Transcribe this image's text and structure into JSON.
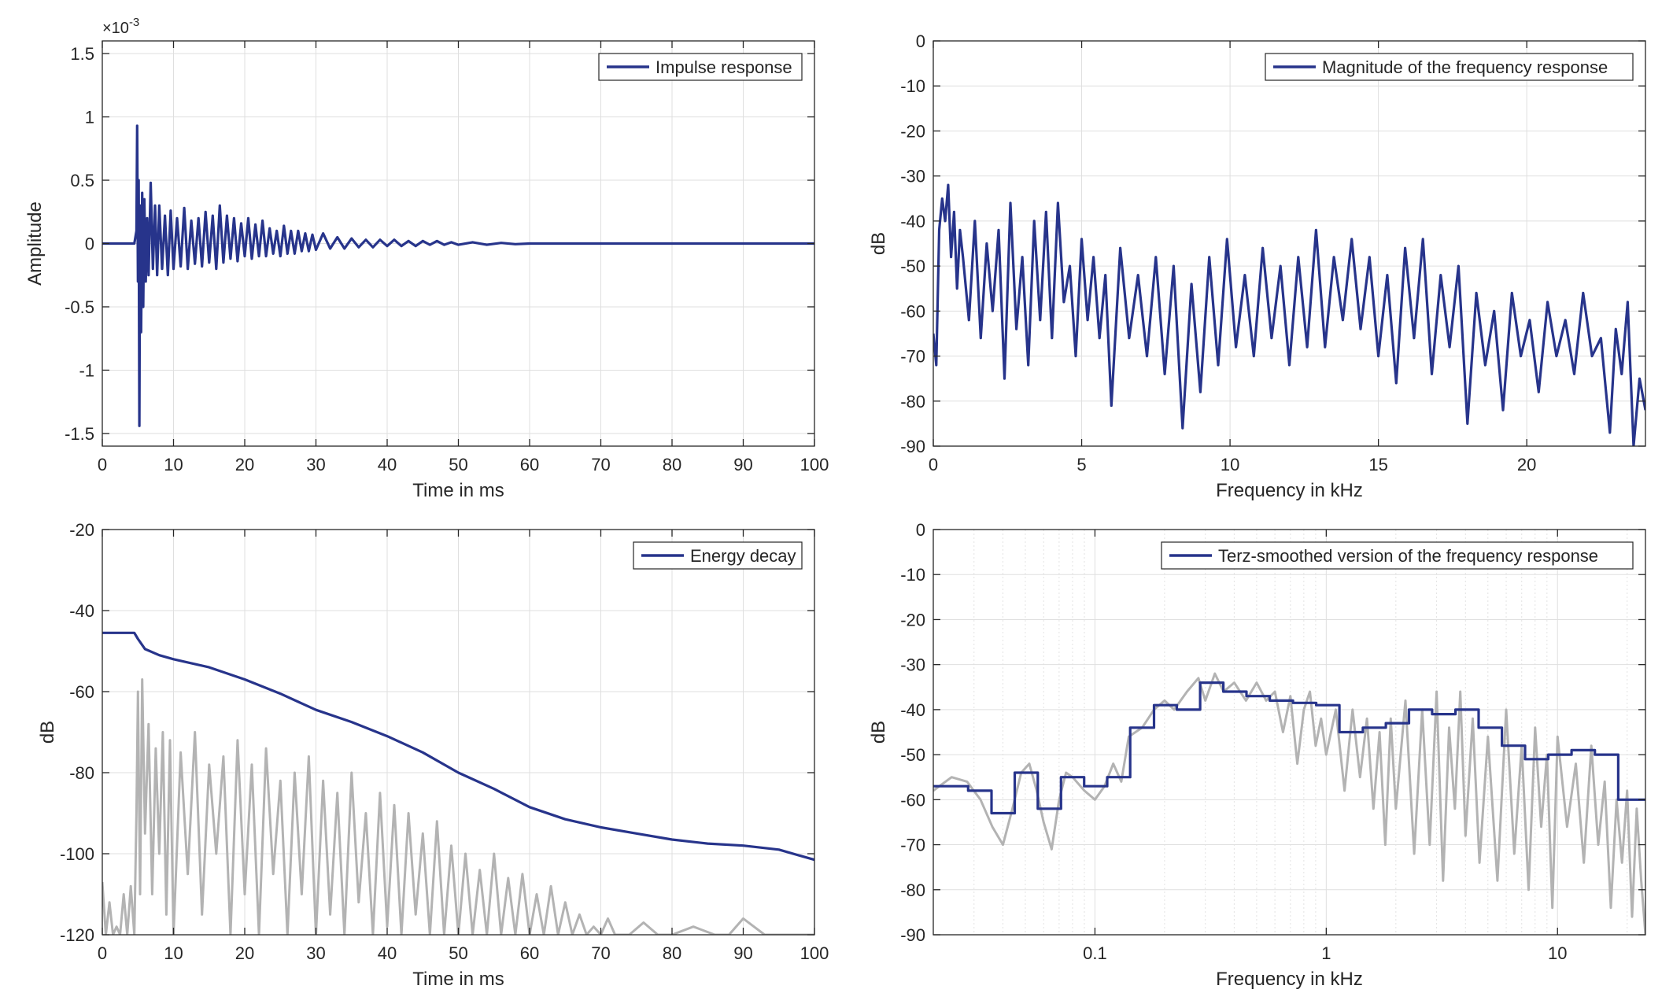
{
  "colors": {
    "series": "#27348b",
    "raw": "#b3b3b3",
    "axis": "#262626",
    "grid": "#dfdfdf",
    "minor_grid": "#e3e3e3"
  },
  "chart_data": [
    {
      "id": "impulse",
      "type": "line",
      "title": "",
      "xlabel": "Time in ms",
      "ylabel": "Amplitude",
      "xlim": [
        0,
        100
      ],
      "ylim": [
        -1.6,
        1.6
      ],
      "x_scale": "linear",
      "exponent_label": "×10",
      "exponent_value": "-3",
      "grid": true,
      "legend_position": "top-right",
      "x_ticks": [
        0,
        10,
        20,
        30,
        40,
        50,
        60,
        70,
        80,
        90,
        100
      ],
      "x_tick_labels": [
        "0",
        "10",
        "20",
        "30",
        "40",
        "50",
        "60",
        "70",
        "80",
        "90",
        "100"
      ],
      "y_ticks": [
        -1.5,
        -1,
        -0.5,
        0,
        0.5,
        1,
        1.5
      ],
      "y_tick_labels": [
        "-1.5",
        "-1",
        "-0.5",
        "0",
        "0.5",
        "1",
        "1.5"
      ],
      "series": [
        {
          "name": "Impulse response",
          "role": "main",
          "x": [
            0,
            4.5,
            4.8,
            4.9,
            5.0,
            5.1,
            5.2,
            5.3,
            5.45,
            5.6,
            5.75,
            5.9,
            6.1,
            6.3,
            6.5,
            6.8,
            7.1,
            7.4,
            7.7,
            8.0,
            8.4,
            8.8,
            9.2,
            9.6,
            10.0,
            10.5,
            11.0,
            11.5,
            12.0,
            12.5,
            13.0,
            13.5,
            14.0,
            14.5,
            15.0,
            15.5,
            16.0,
            16.5,
            17.0,
            17.5,
            18.0,
            18.5,
            19.0,
            19.5,
            20.0,
            20.5,
            21.0,
            21.5,
            22.0,
            22.5,
            23.0,
            23.5,
            24.0,
            24.5,
            25.0,
            25.5,
            26.0,
            26.5,
            27.0,
            27.5,
            28.0,
            28.5,
            29.0,
            29.5,
            30.0,
            31.0,
            32.0,
            33.0,
            34.0,
            35.0,
            36.0,
            37.0,
            38.0,
            39.0,
            40.0,
            41.0,
            42.0,
            43.0,
            44.0,
            45.0,
            46.0,
            47.0,
            48.0,
            49.0,
            50.0,
            52.0,
            54.0,
            56.0,
            58.0,
            60.0,
            65.0,
            70.0,
            80.0,
            90.0,
            100.0
          ],
          "y": [
            0,
            0,
            0.1,
            0.93,
            -0.3,
            0.5,
            -1.44,
            0.3,
            -0.7,
            0.4,
            -0.5,
            0.35,
            -0.3,
            0.2,
            -0.25,
            0.48,
            -0.2,
            0.3,
            -0.25,
            0.3,
            -0.2,
            0.22,
            -0.25,
            0.26,
            -0.2,
            0.2,
            -0.18,
            0.28,
            -0.2,
            0.18,
            -0.16,
            0.2,
            -0.18,
            0.25,
            -0.15,
            0.22,
            -0.2,
            0.3,
            -0.15,
            0.22,
            -0.12,
            0.2,
            -0.14,
            0.16,
            -0.1,
            0.2,
            -0.12,
            0.15,
            -0.1,
            0.18,
            -0.1,
            0.12,
            -0.08,
            0.1,
            -0.1,
            0.14,
            -0.08,
            0.1,
            -0.08,
            0.1,
            -0.06,
            0.08,
            -0.06,
            0.07,
            -0.05,
            0.08,
            -0.04,
            0.05,
            -0.04,
            0.04,
            -0.03,
            0.03,
            -0.03,
            0.03,
            -0.02,
            0.03,
            -0.02,
            0.02,
            -0.02,
            0.02,
            -0.01,
            0.02,
            -0.01,
            0.01,
            -0.01,
            0.01,
            -0.01,
            0.005,
            -0.005,
            0,
            0,
            0,
            0,
            0,
            0
          ]
        }
      ]
    },
    {
      "id": "magnitude",
      "type": "line",
      "title": "",
      "xlabel": "Frequency in kHz",
      "ylabel": "dB",
      "xlim": [
        0,
        24
      ],
      "ylim": [
        -90,
        0
      ],
      "x_scale": "linear",
      "grid": true,
      "legend_position": "top-right",
      "x_ticks": [
        0,
        5,
        10,
        15,
        20
      ],
      "x_tick_labels": [
        "0",
        "5",
        "10",
        "15",
        "20"
      ],
      "y_ticks": [
        -90,
        -80,
        -70,
        -60,
        -50,
        -40,
        -30,
        -20,
        -10,
        0
      ],
      "y_tick_labels": [
        "-90",
        "-80",
        "-70",
        "-60",
        "-50",
        "-40",
        "-30",
        "-20",
        "-10",
        "0"
      ],
      "series": [
        {
          "name": "Magnitude of the frequency response",
          "role": "main",
          "x": [
            0.0,
            0.1,
            0.2,
            0.3,
            0.4,
            0.5,
            0.6,
            0.7,
            0.8,
            0.9,
            1.0,
            1.2,
            1.4,
            1.6,
            1.8,
            2.0,
            2.2,
            2.4,
            2.6,
            2.8,
            3.0,
            3.2,
            3.4,
            3.6,
            3.8,
            4.0,
            4.2,
            4.4,
            4.6,
            4.8,
            5.0,
            5.2,
            5.4,
            5.6,
            5.8,
            6.0,
            6.3,
            6.6,
            6.9,
            7.2,
            7.5,
            7.8,
            8.1,
            8.4,
            8.7,
            9.0,
            9.3,
            9.6,
            9.9,
            10.2,
            10.5,
            10.8,
            11.1,
            11.4,
            11.7,
            12.0,
            12.3,
            12.6,
            12.9,
            13.2,
            13.5,
            13.8,
            14.1,
            14.4,
            14.7,
            15.0,
            15.3,
            15.6,
            15.9,
            16.2,
            16.5,
            16.8,
            17.1,
            17.4,
            17.7,
            18.0,
            18.3,
            18.6,
            18.9,
            19.2,
            19.5,
            19.8,
            20.1,
            20.4,
            20.7,
            21.0,
            21.3,
            21.6,
            21.9,
            22.2,
            22.5,
            22.8,
            23.0,
            23.2,
            23.4,
            23.6,
            23.8,
            24.0
          ],
          "y": [
            -65,
            -72,
            -42,
            -35,
            -40,
            -32,
            -48,
            -38,
            -55,
            -42,
            -48,
            -62,
            -40,
            -66,
            -45,
            -60,
            -42,
            -75,
            -36,
            -64,
            -48,
            -72,
            -40,
            -62,
            -38,
            -66,
            -36,
            -58,
            -50,
            -70,
            -44,
            -62,
            -48,
            -66,
            -52,
            -81,
            -46,
            -66,
            -52,
            -70,
            -48,
            -74,
            -50,
            -86,
            -54,
            -78,
            -48,
            -72,
            -44,
            -68,
            -52,
            -70,
            -46,
            -66,
            -50,
            -72,
            -48,
            -68,
            -42,
            -68,
            -48,
            -62,
            -44,
            -64,
            -48,
            -70,
            -52,
            -76,
            -46,
            -66,
            -44,
            -74,
            -52,
            -68,
            -50,
            -85,
            -56,
            -72,
            -60,
            -82,
            -56,
            -70,
            -62,
            -78,
            -58,
            -70,
            -62,
            -74,
            -56,
            -70,
            -66,
            -87,
            -64,
            -74,
            -58,
            -90,
            -75,
            -82
          ]
        }
      ]
    },
    {
      "id": "energy",
      "type": "line",
      "title": "",
      "xlabel": "Time in ms",
      "ylabel": "dB",
      "xlim": [
        0,
        100
      ],
      "ylim": [
        -120,
        -20
      ],
      "x_scale": "linear",
      "grid": true,
      "legend_position": "top-right",
      "x_ticks": [
        0,
        10,
        20,
        30,
        40,
        50,
        60,
        70,
        80,
        90,
        100
      ],
      "x_tick_labels": [
        "0",
        "10",
        "20",
        "30",
        "40",
        "50",
        "60",
        "70",
        "80",
        "90",
        "100"
      ],
      "y_ticks": [
        -120,
        -100,
        -80,
        -60,
        -40,
        -20
      ],
      "y_tick_labels": [
        "-120",
        "-100",
        "-80",
        "-60",
        "-40",
        "-20"
      ],
      "series": [
        {
          "name": "",
          "role": "raw",
          "x": [
            0,
            0.5,
            1,
            1.5,
            2,
            2.5,
            3,
            3.5,
            4,
            4.5,
            4.8,
            5.0,
            5.3,
            5.6,
            6.0,
            6.5,
            7.0,
            7.5,
            8.0,
            8.5,
            9.0,
            9.5,
            10.0,
            11,
            12,
            13,
            14,
            15,
            16,
            17,
            18,
            19,
            20,
            21,
            22,
            23,
            24,
            25,
            26,
            27,
            28,
            29,
            30,
            31,
            32,
            33,
            34,
            35,
            36,
            37,
            38,
            39,
            40,
            41,
            42,
            43,
            44,
            45,
            46,
            47,
            48,
            49,
            50,
            51,
            52,
            53,
            54,
            55,
            56,
            57,
            58,
            59,
            60,
            61,
            62,
            63,
            64,
            65,
            66,
            67,
            68,
            69,
            70,
            71,
            72,
            74,
            76,
            78,
            80,
            83,
            86,
            88,
            90,
            93,
            96,
            98,
            100
          ],
          "y": [
            -107,
            -120,
            -112,
            -120,
            -118,
            -120,
            -110,
            -120,
            -108,
            -120,
            -90,
            -60,
            -110,
            -57,
            -95,
            -68,
            -110,
            -74,
            -100,
            -70,
            -115,
            -72,
            -120,
            -75,
            -105,
            -70,
            -115,
            -78,
            -100,
            -76,
            -120,
            -72,
            -110,
            -78,
            -120,
            -74,
            -105,
            -82,
            -120,
            -80,
            -110,
            -76,
            -120,
            -82,
            -115,
            -85,
            -120,
            -80,
            -112,
            -90,
            -120,
            -85,
            -118,
            -88,
            -120,
            -90,
            -115,
            -95,
            -120,
            -92,
            -120,
            -98,
            -120,
            -100,
            -120,
            -104,
            -120,
            -100,
            -120,
            -106,
            -120,
            -105,
            -120,
            -110,
            -120,
            -108,
            -120,
            -112,
            -120,
            -115,
            -120,
            -118,
            -120,
            -116,
            -120,
            -120,
            -117,
            -120,
            -120,
            -118,
            -120,
            -120,
            -116,
            -120,
            -120,
            -120,
            -120
          ]
        },
        {
          "name": "Energy decay",
          "role": "main",
          "x": [
            0,
            4.5,
            5,
            6,
            8,
            10,
            15,
            20,
            25,
            30,
            35,
            40,
            45,
            50,
            55,
            60,
            65,
            70,
            75,
            80,
            85,
            90,
            95,
            98,
            100
          ],
          "y": [
            -45.5,
            -45.5,
            -47,
            -49.5,
            -51,
            -52,
            -54,
            -57,
            -60.5,
            -64.5,
            -67.5,
            -71,
            -75,
            -80,
            -84,
            -88.5,
            -91.5,
            -93.5,
            -95,
            -96.5,
            -97.5,
            -98,
            -99,
            -100.5,
            -101.5
          ]
        }
      ]
    },
    {
      "id": "terz",
      "type": "line",
      "title": "",
      "xlabel": "Frequency in kHz",
      "ylabel": "dB",
      "xlim": [
        0.02,
        24
      ],
      "ylim": [
        -90,
        0
      ],
      "x_scale": "log",
      "grid": true,
      "legend_position": "top-right",
      "x_ticks": [
        0.1,
        1,
        10
      ],
      "x_tick_labels": [
        "0.1",
        "1",
        "10"
      ],
      "y_ticks": [
        -90,
        -80,
        -70,
        -60,
        -50,
        -40,
        -30,
        -20,
        -10,
        0
      ],
      "y_tick_labels": [
        "-90",
        "-80",
        "-70",
        "-60",
        "-50",
        "-40",
        "-30",
        "-20",
        "-10",
        "0"
      ],
      "series": [
        {
          "name": "",
          "role": "raw",
          "x": [
            0.02,
            0.024,
            0.028,
            0.032,
            0.036,
            0.04,
            0.044,
            0.048,
            0.052,
            0.056,
            0.06,
            0.065,
            0.07,
            0.075,
            0.08,
            0.09,
            0.1,
            0.11,
            0.12,
            0.13,
            0.14,
            0.16,
            0.18,
            0.2,
            0.22,
            0.25,
            0.28,
            0.3,
            0.33,
            0.36,
            0.4,
            0.45,
            0.5,
            0.55,
            0.6,
            0.65,
            0.7,
            0.75,
            0.8,
            0.85,
            0.9,
            0.95,
            1.0,
            1.1,
            1.2,
            1.3,
            1.4,
            1.5,
            1.6,
            1.7,
            1.8,
            1.9,
            2.0,
            2.2,
            2.4,
            2.6,
            2.8,
            3.0,
            3.2,
            3.4,
            3.6,
            3.8,
            4.0,
            4.3,
            4.6,
            5.0,
            5.5,
            6.0,
            6.5,
            7.0,
            7.5,
            8.0,
            8.5,
            9.0,
            9.5,
            10.0,
            11,
            12,
            13,
            14,
            15,
            16,
            17,
            18,
            19,
            20,
            21,
            22,
            23,
            24
          ],
          "y": [
            -58,
            -55,
            -56,
            -60,
            -66,
            -70,
            -62,
            -54,
            -52,
            -58,
            -65,
            -71,
            -60,
            -54,
            -55,
            -58,
            -60,
            -57,
            -52,
            -56,
            -46,
            -44,
            -40,
            -38,
            -40,
            -36,
            -33,
            -38,
            -32,
            -36,
            -34,
            -38,
            -34,
            -38,
            -36,
            -45,
            -37,
            -52,
            -40,
            -36,
            -48,
            -42,
            -50,
            -40,
            -58,
            -40,
            -55,
            -42,
            -62,
            -45,
            -70,
            -42,
            -62,
            -38,
            -72,
            -40,
            -70,
            -36,
            -78,
            -44,
            -62,
            -36,
            -68,
            -42,
            -74,
            -46,
            -78,
            -40,
            -72,
            -48,
            -80,
            -44,
            -66,
            -50,
            -84,
            -46,
            -66,
            -52,
            -74,
            -48,
            -70,
            -56,
            -84,
            -60,
            -74,
            -58,
            -86,
            -62,
            -78,
            -90
          ]
        },
        {
          "name": "Terz-smoothed version of the frequency response",
          "role": "main",
          "step": true,
          "edges": [
            0.02,
            0.0283,
            0.0357,
            0.045,
            0.0566,
            0.0713,
            0.0898,
            0.113,
            0.142,
            0.18,
            0.226,
            0.285,
            0.359,
            0.452,
            0.57,
            0.718,
            0.905,
            1.14,
            1.44,
            1.81,
            2.28,
            2.87,
            3.62,
            4.56,
            5.75,
            7.24,
            9.12,
            11.5,
            14.5,
            18.3,
            24
          ],
          "y": [
            -57,
            -58,
            -63,
            -54,
            -62,
            -55,
            -57,
            -55,
            -44,
            -39,
            -40,
            -34,
            -36,
            -37,
            -38,
            -38.5,
            -39,
            -45,
            -44,
            -43,
            -40,
            -41,
            -40,
            -44,
            -48,
            -51,
            -50,
            -49,
            -50,
            -60
          ]
        }
      ]
    }
  ]
}
